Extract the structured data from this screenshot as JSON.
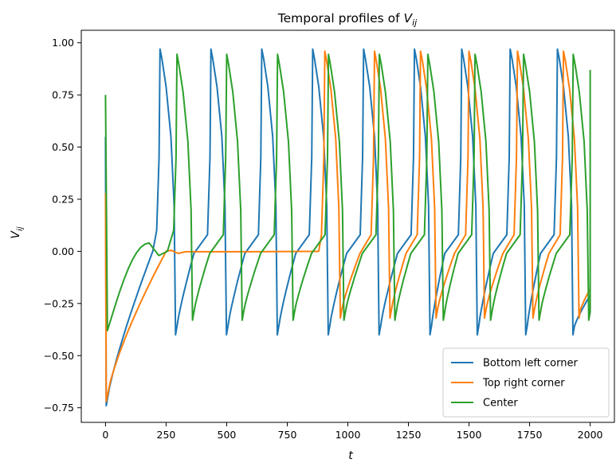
{
  "chart_data": {
    "type": "line",
    "title": "Temporal profiles of ",
    "title_math": "V",
    "title_sub": "ij",
    "xlabel": "t",
    "ylabel": "V",
    "ylabel_sub": "ij",
    "xlim": [
      -100,
      2100
    ],
    "ylim": [
      -0.82,
      1.06
    ],
    "xticks": [
      0,
      250,
      500,
      750,
      1000,
      1250,
      1500,
      1750,
      2000
    ],
    "xtick_labels": [
      "0",
      "250",
      "500",
      "750",
      "1000",
      "1250",
      "1500",
      "1750",
      "2000"
    ],
    "yticks": [
      -0.75,
      -0.5,
      -0.25,
      0.0,
      0.25,
      0.5,
      0.75,
      1.0
    ],
    "ytick_labels": [
      "−0.75",
      "−0.50",
      "−0.25",
      "0.00",
      "0.25",
      "0.50",
      "0.75",
      "1.00"
    ],
    "grid": false,
    "legend_position": "bottom-right",
    "series": [
      {
        "name": "Bottom left corner",
        "color": "#1f77b4",
        "start": {
          "t": 0,
          "v": 0.55
        },
        "drop": {
          "t": 3,
          "v": -0.74
        },
        "rise_end": {
          "t": 215,
          "v": 0.15
        },
        "spikes": [
          225,
          435,
          645,
          855,
          1065,
          1275,
          1470,
          1670,
          1865
        ],
        "peak": 0.97,
        "min": -0.4,
        "end": {
          "t": 2000,
          "v": -0.21
        }
      },
      {
        "name": "Top right corner",
        "color": "#ff7f0e",
        "start": {
          "t": 0,
          "v": 0.28
        },
        "drop": {
          "t": 3,
          "v": -0.72
        },
        "plateau": {
          "t_start": 270,
          "t_end": 880,
          "v": 0.0
        },
        "spikes": [
          905,
          1110,
          1300,
          1500,
          1700,
          1890
        ],
        "peak": 0.96,
        "min": -0.32,
        "end": {
          "t": 2000,
          "v": -0.18
        }
      },
      {
        "name": "Center",
        "color": "#2ca02c",
        "start": {
          "t": 0,
          "v": 0.75
        },
        "drop": {
          "t": 8,
          "v": -0.38
        },
        "bump": {
          "t": 180,
          "v": 0.04
        },
        "dip": {
          "t": 220,
          "v": -0.02
        },
        "spikes": [
          295,
          500,
          710,
          920,
          1130,
          1330,
          1525,
          1725,
          1930
        ],
        "peak": 0.945,
        "min": -0.33,
        "end": {
          "t": 2000,
          "v": 0.87
        }
      }
    ]
  }
}
